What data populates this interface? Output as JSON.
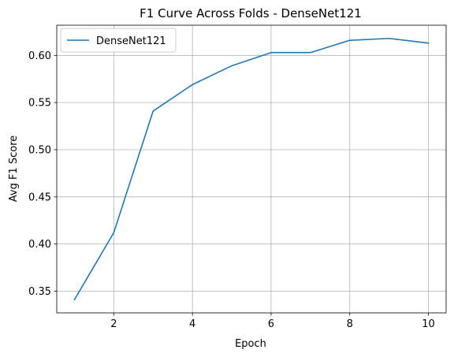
{
  "chart_data": {
    "type": "line",
    "title": "F1 Curve Across Folds - DenseNet121",
    "xlabel": "Epoch",
    "ylabel": "Avg F1 Score",
    "x": [
      1,
      2,
      3,
      4,
      5,
      6,
      7,
      8,
      9,
      10
    ],
    "series": [
      {
        "name": "DenseNet121",
        "color": "#1f77b4",
        "values": [
          0.341,
          0.412,
          0.541,
          0.569,
          0.589,
          0.603,
          0.603,
          0.616,
          0.618,
          0.613
        ]
      }
    ],
    "xlim": [
      0.55,
      10.45
    ],
    "ylim": [
      0.327,
      0.632
    ],
    "xticks": [
      2,
      4,
      6,
      8,
      10
    ],
    "yticks": [
      0.35,
      0.4,
      0.45,
      0.5,
      0.55,
      0.6
    ],
    "xtick_labels": [
      "2",
      "4",
      "6",
      "8",
      "10"
    ],
    "ytick_labels": [
      "0.35",
      "0.40",
      "0.45",
      "0.50",
      "0.55",
      "0.60"
    ],
    "grid": true,
    "legend_position": "top-left"
  }
}
